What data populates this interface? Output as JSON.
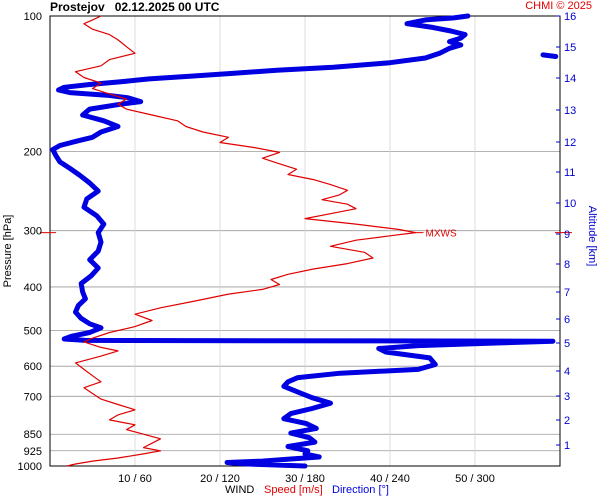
{
  "header": {
    "station": "Prostejov",
    "datetime": "02.12.2025 00 UTC",
    "copyright": "CHMI © 2025"
  },
  "labels": {
    "wind": "WIND",
    "speed": "Speed [m/s]",
    "direction": "Direction [°]",
    "pressure_axis": "Pressure [hPa]",
    "altitude_axis": "Altitude [km]",
    "mxws": "MXWS"
  },
  "colors": {
    "speed": "#e00000",
    "direction": "#0000e0",
    "grid": "#c8c8c8",
    "axis_text": "#000000",
    "altitude_text": "#0000d0",
    "copyright": "#e00000"
  },
  "chart_data": {
    "type": "line",
    "title": "Prostejov   02.12.2025 00 UTC",
    "xlabel": "WIND  Speed [m/s]  Direction [°]",
    "ylabel": "Pressure [hPa]",
    "y2label": "Altitude [km]",
    "y_scale": "log",
    "y_reversed": true,
    "ylim": [
      1000,
      100
    ],
    "y_ticks": [
      100,
      200,
      300,
      400,
      500,
      600,
      700,
      850,
      925,
      1000
    ],
    "x_ticks": [
      {
        "speed": 10,
        "direction": 60,
        "label": "10 / 60"
      },
      {
        "speed": 20,
        "direction": 120,
        "label": "20 / 120"
      },
      {
        "speed": 30,
        "direction": 180,
        "label": "30 / 180"
      },
      {
        "speed": 40,
        "direction": 240,
        "label": "40 / 240"
      },
      {
        "speed": 50,
        "direction": 300,
        "label": "50 / 300"
      }
    ],
    "speed_range": [
      0,
      60
    ],
    "direction_range": [
      0,
      360
    ],
    "altitude_ticks_km": [
      1,
      2,
      3,
      4,
      5,
      6,
      7,
      8,
      9,
      10,
      11,
      12,
      13,
      14,
      15,
      16
    ],
    "grid": true,
    "series": [
      {
        "name": "Speed [m/s]",
        "unit": "m/s",
        "points": [
          {
            "p": 1000,
            "v": 2
          },
          {
            "p": 990,
            "v": 3
          },
          {
            "p": 975,
            "v": 5
          },
          {
            "p": 960,
            "v": 8
          },
          {
            "p": 940,
            "v": 11
          },
          {
            "p": 925,
            "v": 13
          },
          {
            "p": 910,
            "v": 11
          },
          {
            "p": 890,
            "v": 12
          },
          {
            "p": 870,
            "v": 13
          },
          {
            "p": 850,
            "v": 11
          },
          {
            "p": 830,
            "v": 9
          },
          {
            "p": 810,
            "v": 10
          },
          {
            "p": 790,
            "v": 7
          },
          {
            "p": 770,
            "v": 8
          },
          {
            "p": 750,
            "v": 10
          },
          {
            "p": 730,
            "v": 8
          },
          {
            "p": 710,
            "v": 6
          },
          {
            "p": 690,
            "v": 5
          },
          {
            "p": 670,
            "v": 4
          },
          {
            "p": 650,
            "v": 6
          },
          {
            "p": 630,
            "v": 5
          },
          {
            "p": 610,
            "v": 4
          },
          {
            "p": 590,
            "v": 3
          },
          {
            "p": 570,
            "v": 6
          },
          {
            "p": 555,
            "v": 8
          },
          {
            "p": 545,
            "v": 6
          },
          {
            "p": 530,
            "v": 4
          },
          {
            "p": 520,
            "v": 5
          },
          {
            "p": 505,
            "v": 7
          },
          {
            "p": 490,
            "v": 10
          },
          {
            "p": 475,
            "v": 12
          },
          {
            "p": 460,
            "v": 10
          },
          {
            "p": 445,
            "v": 13
          },
          {
            "p": 430,
            "v": 17
          },
          {
            "p": 415,
            "v": 21
          },
          {
            "p": 405,
            "v": 25
          },
          {
            "p": 395,
            "v": 27
          },
          {
            "p": 385,
            "v": 26
          },
          {
            "p": 375,
            "v": 28
          },
          {
            "p": 365,
            "v": 31
          },
          {
            "p": 355,
            "v": 35
          },
          {
            "p": 345,
            "v": 38
          },
          {
            "p": 335,
            "v": 37
          },
          {
            "p": 325,
            "v": 33
          },
          {
            "p": 315,
            "v": 36
          },
          {
            "p": 308,
            "v": 40
          },
          {
            "p": 303,
            "v": 43
          },
          {
            "p": 298,
            "v": 41
          },
          {
            "p": 290,
            "v": 36
          },
          {
            "p": 282,
            "v": 30
          },
          {
            "p": 275,
            "v": 33
          },
          {
            "p": 268,
            "v": 36
          },
          {
            "p": 262,
            "v": 35
          },
          {
            "p": 256,
            "v": 32
          },
          {
            "p": 250,
            "v": 34
          },
          {
            "p": 244,
            "v": 35
          },
          {
            "p": 237,
            "v": 33
          },
          {
            "p": 231,
            "v": 31
          },
          {
            "p": 225,
            "v": 28
          },
          {
            "p": 219,
            "v": 29
          },
          {
            "p": 213,
            "v": 27
          },
          {
            "p": 207,
            "v": 25
          },
          {
            "p": 201,
            "v": 27
          },
          {
            "p": 196,
            "v": 24
          },
          {
            "p": 191,
            "v": 20
          },
          {
            "p": 186,
            "v": 21
          },
          {
            "p": 181,
            "v": 18
          },
          {
            "p": 176,
            "v": 16
          },
          {
            "p": 171,
            "v": 15
          },
          {
            "p": 166,
            "v": 12
          },
          {
            "p": 161,
            "v": 9
          },
          {
            "p": 157,
            "v": 8
          },
          {
            "p": 153,
            "v": 9
          },
          {
            "p": 149,
            "v": 7
          },
          {
            "p": 145,
            "v": 5
          },
          {
            "p": 141,
            "v": 6
          },
          {
            "p": 137,
            "v": 4
          },
          {
            "p": 133,
            "v": 3
          },
          {
            "p": 129,
            "v": 6
          },
          {
            "p": 125,
            "v": 7
          },
          {
            "p": 121,
            "v": 10
          },
          {
            "p": 117,
            "v": 9
          },
          {
            "p": 113,
            "v": 8
          },
          {
            "p": 110,
            "v": 7
          },
          {
            "p": 107,
            "v": 5
          },
          {
            "p": 104,
            "v": 4
          },
          {
            "p": 102,
            "v": 5
          },
          {
            "p": 100,
            "v": 6
          }
        ]
      },
      {
        "name": "Direction [°]",
        "unit": "°",
        "points": [
          {
            "p": 1000,
            "v": 180
          },
          {
            "p": 990,
            "v": 140
          },
          {
            "p": 982,
            "v": 125
          },
          {
            "p": 975,
            "v": 150
          },
          {
            "p": 965,
            "v": 170
          },
          {
            "p": 955,
            "v": 190
          },
          {
            "p": 940,
            "v": 180
          },
          {
            "p": 925,
            "v": 182
          },
          {
            "p": 905,
            "v": 168
          },
          {
            "p": 885,
            "v": 187
          },
          {
            "p": 865,
            "v": 183
          },
          {
            "p": 845,
            "v": 170
          },
          {
            "p": 825,
            "v": 188
          },
          {
            "p": 805,
            "v": 181
          },
          {
            "p": 785,
            "v": 165
          },
          {
            "p": 765,
            "v": 170
          },
          {
            "p": 745,
            "v": 185
          },
          {
            "p": 725,
            "v": 198
          },
          {
            "p": 705,
            "v": 185
          },
          {
            "p": 685,
            "v": 175
          },
          {
            "p": 665,
            "v": 165
          },
          {
            "p": 650,
            "v": 168
          },
          {
            "p": 636,
            "v": 175
          },
          {
            "p": 622,
            "v": 205
          },
          {
            "p": 610,
            "v": 260
          },
          {
            "p": 595,
            "v": 272
          },
          {
            "p": 575,
            "v": 268
          },
          {
            "p": 558,
            "v": 237
          },
          {
            "p": 548,
            "v": 232
          },
          {
            "p": 540,
            "v": 260
          },
          {
            "p": 533,
            "v": 315
          },
          {
            "p": 528,
            "v": 355
          },
          {
            "p": 526,
            "v": 25
          },
          {
            "p": 522,
            "v": 10
          },
          {
            "p": 515,
            "v": 15
          },
          {
            "p": 505,
            "v": 28
          },
          {
            "p": 493,
            "v": 36
          },
          {
            "p": 483,
            "v": 28
          },
          {
            "p": 470,
            "v": 22
          },
          {
            "p": 455,
            "v": 18
          },
          {
            "p": 440,
            "v": 20
          },
          {
            "p": 425,
            "v": 25
          },
          {
            "p": 410,
            "v": 23
          },
          {
            "p": 393,
            "v": 22
          },
          {
            "p": 378,
            "v": 29
          },
          {
            "p": 363,
            "v": 34
          },
          {
            "p": 348,
            "v": 28
          },
          {
            "p": 333,
            "v": 34
          },
          {
            "p": 318,
            "v": 36
          },
          {
            "p": 303,
            "v": 34
          },
          {
            "p": 290,
            "v": 38
          },
          {
            "p": 278,
            "v": 33
          },
          {
            "p": 266,
            "v": 24
          },
          {
            "p": 255,
            "v": 26
          },
          {
            "p": 245,
            "v": 34
          },
          {
            "p": 235,
            "v": 28
          },
          {
            "p": 226,
            "v": 21
          },
          {
            "p": 218,
            "v": 14
          },
          {
            "p": 211,
            "v": 7
          },
          {
            "p": 204,
            "v": 4
          },
          {
            "p": 198,
            "v": 2
          },
          {
            "p": 194,
            "v": 7
          },
          {
            "p": 190,
            "v": 18
          },
          {
            "p": 186,
            "v": 30
          },
          {
            "p": 181,
            "v": 36
          },
          {
            "p": 176,
            "v": 48
          },
          {
            "p": 171,
            "v": 38
          },
          {
            "p": 166,
            "v": 23
          },
          {
            "p": 161,
            "v": 28
          },
          {
            "p": 157,
            "v": 50
          },
          {
            "p": 155,
            "v": 64
          },
          {
            "p": 152,
            "v": 55
          },
          {
            "p": 150,
            "v": 40
          },
          {
            "p": 148,
            "v": 14
          },
          {
            "p": 146,
            "v": 6
          },
          {
            "p": 144,
            "v": 10
          },
          {
            "p": 142,
            "v": 28
          },
          {
            "p": 140,
            "v": 50
          },
          {
            "p": 138,
            "v": 70
          },
          {
            "p": 136,
            "v": 100
          },
          {
            "p": 134,
            "v": 130
          },
          {
            "p": 132,
            "v": 160
          },
          {
            "p": 130,
            "v": 200
          },
          {
            "p": 127,
            "v": 240
          },
          {
            "p": 124,
            "v": 265
          },
          {
            "p": 121,
            "v": 275
          },
          {
            "p": 118,
            "v": 282
          },
          {
            "p": 116,
            "v": 290
          },
          {
            "p": 114,
            "v": 282
          },
          {
            "p": 112,
            "v": 290
          },
          {
            "p": 110,
            "v": 293
          },
          {
            "p": 108,
            "v": 283
          },
          {
            "p": 106,
            "v": 270
          },
          {
            "p": 104,
            "v": 252
          },
          {
            "p": 102,
            "v": 265
          },
          {
            "p": 101,
            "v": 285
          },
          {
            "p": 100,
            "v": 295
          }
        ]
      },
      {
        "name": "Direction [°] (upper fragment)",
        "unit": "°",
        "points": [
          {
            "p": 123,
            "v": 357
          },
          {
            "p": 122,
            "v": 348
          }
        ]
      }
    ],
    "annotations": [
      {
        "text": "MXWS",
        "p": 303,
        "speed": 43
      }
    ]
  }
}
